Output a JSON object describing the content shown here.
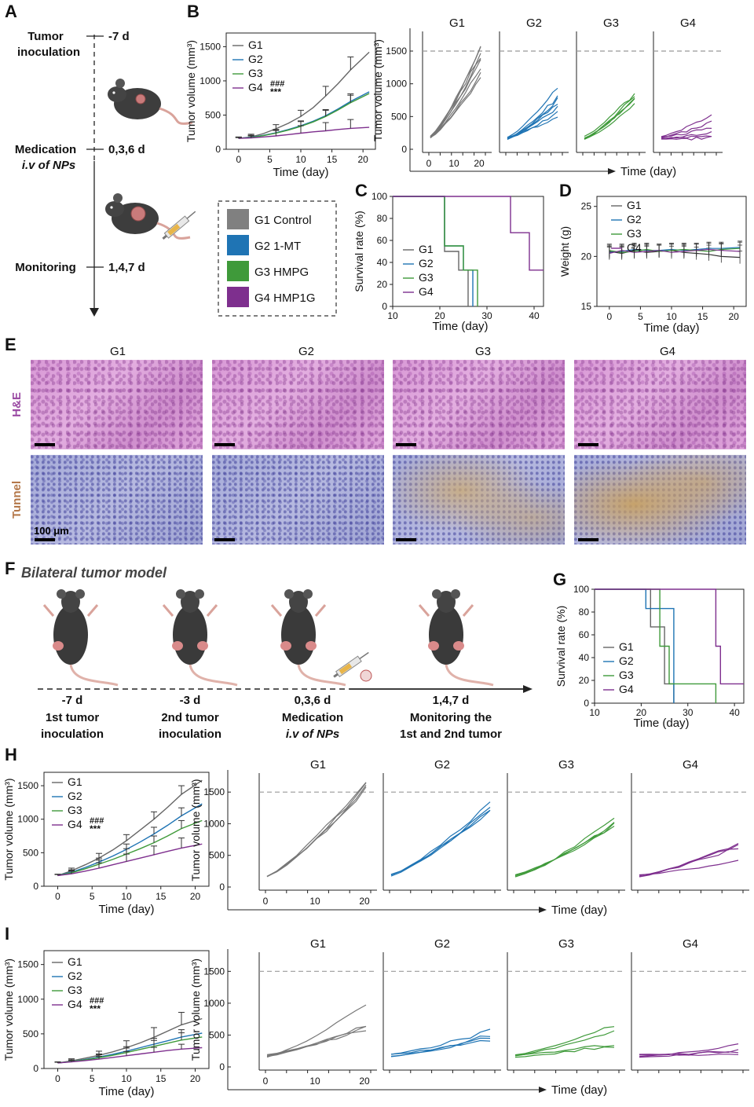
{
  "colors": {
    "G1": "#8c8c8c",
    "G2": "#1f74b4",
    "G3": "#3f9a3a",
    "G4": "#7e2f8e",
    "dash": "#999999"
  },
  "panelA": {
    "letter": "A",
    "steps": [
      {
        "label1": "Tumor",
        "label2": "inoculation",
        "day": "-7 d"
      },
      {
        "label1": "Medication",
        "label2": "i.v of NPs",
        "day": "0,3,6 d"
      },
      {
        "label1": "Monitoring",
        "label2": "",
        "day": "1,4,7 d"
      }
    ]
  },
  "legendBox": {
    "items": [
      {
        "label": "G1 Control",
        "color": "#808080"
      },
      {
        "label": "G2 1-MT",
        "color": "#1f74b4"
      },
      {
        "label": "G3 HMPG",
        "color": "#3f9a3a"
      },
      {
        "label": "G4 HMP1G",
        "color": "#7e2f8e"
      }
    ]
  },
  "panelE": {
    "letter": "E",
    "cols": [
      "G1",
      "G2",
      "G3",
      "G4"
    ],
    "rows": [
      "H&E",
      "Tunnel"
    ],
    "scale": "100 μm"
  },
  "panelF": {
    "letter": "F",
    "title": "Bilateral tumor model",
    "steps": [
      {
        "day": "-7 d",
        "l1": "1st tumor",
        "l2": "inoculation"
      },
      {
        "day": "-3 d",
        "l1": "2nd tumor",
        "l2": "inoculation"
      },
      {
        "day": "0,3,6 d",
        "l1": "Medication",
        "l2": "i.v of NPs"
      },
      {
        "day": "1,4,7 d",
        "l1": "Monitoring the",
        "l2": "1st and 2nd tumor"
      }
    ]
  },
  "chart_data": [
    {
      "id": "B-mean",
      "type": "line",
      "title": "",
      "xlabel": "Time (day)",
      "ylabel": "Tumor volume (mm³)",
      "xlim": [
        -2,
        22
      ],
      "ylim": [
        0,
        1700
      ],
      "xticks": [
        0,
        5,
        10,
        15,
        20
      ],
      "yticks": [
        0,
        500,
        1000,
        1500
      ],
      "legend": [
        "G1",
        "G2",
        "G3",
        "G4"
      ],
      "annotation": "### ***",
      "x": [
        0,
        2,
        4,
        6,
        8,
        10,
        12,
        14,
        16,
        18,
        21
      ],
      "series": [
        {
          "name": "G1",
          "values": [
            160,
            180,
            230,
            300,
            380,
            480,
            610,
            780,
            960,
            1160,
            1420
          ],
          "err": [
            20,
            40,
            50,
            60,
            80,
            90,
            110,
            140,
            160,
            190,
            220
          ]
        },
        {
          "name": "G2",
          "values": [
            160,
            175,
            205,
            240,
            290,
            345,
            410,
            490,
            590,
            700,
            840
          ],
          "err": [
            15,
            30,
            40,
            50,
            60,
            70,
            80,
            90,
            100,
            110,
            120
          ]
        },
        {
          "name": "G3",
          "values": [
            160,
            170,
            200,
            235,
            280,
            335,
            400,
            480,
            575,
            680,
            815
          ],
          "err": [
            15,
            30,
            40,
            50,
            60,
            70,
            80,
            90,
            100,
            110,
            120
          ]
        },
        {
          "name": "G4",
          "values": [
            160,
            165,
            180,
            195,
            215,
            235,
            255,
            270,
            290,
            305,
            320
          ],
          "err": [
            10,
            30,
            50,
            80,
            100,
            110,
            120,
            120,
            120,
            130,
            130
          ]
        }
      ]
    },
    {
      "id": "B-ind",
      "type": "line",
      "xlabel": "Time (day)",
      "ylabel": "Tumor volume (mm³)",
      "ylim": [
        0,
        1800
      ],
      "yticks": [
        0,
        500,
        1000,
        1500
      ],
      "xticks": [
        0,
        10,
        20
      ],
      "threshold": 1500,
      "facets": [
        "G1",
        "G2",
        "G3",
        "G4"
      ]
    },
    {
      "id": "C",
      "type": "line",
      "xlabel": "Time (day)",
      "ylabel": "Survival rate (%)",
      "xlim": [
        10,
        42
      ],
      "ylim": [
        0,
        100
      ],
      "xticks": [
        10,
        20,
        30,
        40
      ],
      "yticks": [
        0,
        20,
        40,
        60,
        80,
        100
      ],
      "legend": [
        "G1",
        "G2",
        "G3",
        "G4"
      ],
      "series": [
        {
          "name": "G1",
          "steps": [
            [
              10,
              100
            ],
            [
              21,
              100
            ],
            [
              21,
              50
            ],
            [
              24,
              50
            ],
            [
              24,
              33
            ],
            [
              26,
              33
            ],
            [
              26,
              0
            ]
          ]
        },
        {
          "name": "G2",
          "steps": [
            [
              10,
              100
            ],
            [
              21,
              100
            ],
            [
              21,
              55
            ],
            [
              25,
              55
            ],
            [
              25,
              33
            ],
            [
              27,
              33
            ],
            [
              27,
              0
            ]
          ]
        },
        {
          "name": "G3",
          "steps": [
            [
              10,
              100
            ],
            [
              21,
              100
            ],
            [
              21,
              55
            ],
            [
              25,
              55
            ],
            [
              25,
              33
            ],
            [
              28,
              33
            ],
            [
              28,
              0
            ]
          ]
        },
        {
          "name": "G4",
          "steps": [
            [
              10,
              100
            ],
            [
              35,
              100
            ],
            [
              35,
              67
            ],
            [
              39,
              67
            ],
            [
              39,
              33
            ],
            [
              42,
              33
            ]
          ]
        }
      ]
    },
    {
      "id": "D",
      "type": "line",
      "xlabel": "Time (day)",
      "ylabel": "Weight (g)",
      "xlim": [
        -2,
        22
      ],
      "ylim": [
        15,
        26
      ],
      "xticks": [
        0,
        5,
        10,
        15,
        20
      ],
      "yticks": [
        15,
        20,
        25
      ],
      "legend": [
        "G1",
        "G2",
        "G3",
        "G4"
      ],
      "x": [
        0,
        2,
        4,
        6,
        8,
        10,
        12,
        14,
        16,
        18,
        21
      ],
      "series": [
        {
          "name": "G1",
          "values": [
            20.5,
            20.3,
            20.6,
            20.4,
            20.5,
            20.6,
            20.4,
            20.3,
            20.2,
            20.0,
            19.9
          ]
        },
        {
          "name": "G2",
          "values": [
            20.4,
            20.5,
            20.7,
            20.6,
            20.6,
            20.7,
            20.6,
            20.7,
            20.8,
            20.8,
            20.9
          ]
        },
        {
          "name": "G3",
          "values": [
            20.6,
            20.4,
            20.5,
            20.7,
            20.5,
            20.6,
            20.7,
            20.6,
            20.5,
            20.7,
            20.8
          ]
        },
        {
          "name": "G4",
          "values": [
            20.3,
            20.6,
            20.4,
            20.5,
            20.6,
            20.4,
            20.5,
            20.6,
            20.7,
            20.6,
            20.5
          ]
        }
      ]
    },
    {
      "id": "G",
      "type": "line",
      "xlabel": "Time (day)",
      "ylabel": "Survival rate (%)",
      "xlim": [
        10,
        42
      ],
      "ylim": [
        0,
        100
      ],
      "xticks": [
        10,
        20,
        30,
        40
      ],
      "yticks": [
        0,
        20,
        40,
        60,
        80,
        100
      ],
      "legend": [
        "G1",
        "G2",
        "G3",
        "G4"
      ],
      "series": [
        {
          "name": "G1",
          "steps": [
            [
              10,
              100
            ],
            [
              22,
              100
            ],
            [
              22,
              67
            ],
            [
              25,
              67
            ],
            [
              25,
              17
            ],
            [
              27,
              17
            ],
            [
              27,
              0
            ]
          ]
        },
        {
          "name": "G2",
          "steps": [
            [
              10,
              100
            ],
            [
              21,
              100
            ],
            [
              21,
              83
            ],
            [
              27,
              83
            ],
            [
              27,
              17
            ],
            [
              27,
              0
            ]
          ]
        },
        {
          "name": "G3",
          "steps": [
            [
              10,
              100
            ],
            [
              24,
              100
            ],
            [
              24,
              50
            ],
            [
              26,
              50
            ],
            [
              26,
              17
            ],
            [
              36,
              17
            ],
            [
              36,
              0
            ]
          ]
        },
        {
          "name": "G4",
          "steps": [
            [
              10,
              100
            ],
            [
              36,
              100
            ],
            [
              36,
              50
            ],
            [
              37,
              50
            ],
            [
              37,
              17
            ],
            [
              42,
              17
            ]
          ]
        }
      ]
    },
    {
      "id": "H-mean",
      "type": "line",
      "xlabel": "Time (day)",
      "ylabel": "Tumor volume (mm³)",
      "xlim": [
        -2,
        22
      ],
      "ylim": [
        0,
        1700
      ],
      "xticks": [
        0,
        5,
        10,
        15,
        20
      ],
      "yticks": [
        0,
        500,
        1000,
        1500
      ],
      "legend": [
        "G1",
        "G2",
        "G3",
        "G4"
      ],
      "annotation": "### ***",
      "x": [
        0,
        2,
        4,
        6,
        8,
        10,
        12,
        14,
        16,
        18,
        21
      ],
      "series": [
        {
          "name": "G1",
          "values": [
            160,
            230,
            320,
            420,
            540,
            680,
            840,
            1000,
            1180,
            1370,
            1580
          ],
          "err": [
            20,
            40,
            60,
            70,
            80,
            90,
            100,
            110,
            120,
            130,
            140
          ]
        },
        {
          "name": "G2",
          "values": [
            160,
            210,
            280,
            360,
            450,
            550,
            660,
            780,
            910,
            1050,
            1230
          ],
          "err": [
            15,
            35,
            50,
            60,
            70,
            80,
            90,
            100,
            110,
            120,
            130
          ]
        },
        {
          "name": "G3",
          "values": [
            160,
            200,
            260,
            330,
            400,
            480,
            560,
            650,
            750,
            860,
            980
          ],
          "err": [
            15,
            35,
            50,
            60,
            70,
            80,
            90,
            100,
            110,
            120,
            130
          ]
        },
        {
          "name": "G4",
          "values": [
            160,
            185,
            225,
            270,
            320,
            370,
            420,
            470,
            520,
            570,
            630
          ],
          "err": [
            15,
            40,
            60,
            80,
            100,
            110,
            120,
            130,
            140,
            150,
            160
          ]
        }
      ]
    },
    {
      "id": "H-ind",
      "type": "line",
      "xlabel": "Time (day)",
      "ylabel": "Tumor volume (mm³)",
      "ylim": [
        0,
        1800
      ],
      "yticks": [
        0,
        500,
        1000,
        1500
      ],
      "xticks": [
        0,
        10,
        20
      ],
      "threshold": 1500,
      "facets": [
        "G1",
        "G2",
        "G3",
        "G4"
      ]
    },
    {
      "id": "I-mean",
      "type": "line",
      "xlabel": "Time (day)",
      "ylabel": "Tumor volume (mm³)",
      "xlim": [
        -2,
        22
      ],
      "ylim": [
        0,
        1700
      ],
      "xticks": [
        0,
        5,
        10,
        15,
        20
      ],
      "yticks": [
        0,
        500,
        1000,
        1500
      ],
      "legend": [
        "G1",
        "G2",
        "G3",
        "G4"
      ],
      "annotation": "### ***",
      "x": [
        0,
        2,
        4,
        6,
        8,
        10,
        12,
        14,
        16,
        18,
        21
      ],
      "series": [
        {
          "name": "G1",
          "values": [
            80,
            110,
            150,
            190,
            240,
            300,
            370,
            450,
            540,
            630,
            720
          ],
          "err": [
            15,
            30,
            40,
            60,
            80,
            100,
            120,
            140,
            160,
            180,
            200
          ]
        },
        {
          "name": "G2",
          "values": [
            80,
            100,
            130,
            165,
            205,
            250,
            300,
            350,
            400,
            455,
            510
          ],
          "err": [
            15,
            25,
            35,
            45,
            55,
            65,
            75,
            85,
            95,
            105,
            115
          ]
        },
        {
          "name": "G3",
          "values": [
            80,
            100,
            125,
            155,
            190,
            230,
            275,
            320,
            365,
            410,
            455
          ],
          "err": [
            15,
            25,
            35,
            45,
            55,
            65,
            75,
            85,
            95,
            105,
            115
          ]
        },
        {
          "name": "G4",
          "values": [
            80,
            95,
            115,
            135,
            160,
            185,
            210,
            235,
            260,
            280,
            300
          ],
          "err": [
            10,
            20,
            30,
            40,
            50,
            60,
            70,
            70,
            70,
            70,
            70
          ]
        }
      ]
    },
    {
      "id": "I-ind",
      "type": "line",
      "xlabel": "Time (day)",
      "ylabel": "Tumor volume (mm³)",
      "ylim": [
        0,
        1800
      ],
      "yticks": [
        0,
        500,
        1000,
        1500
      ],
      "xticks": [
        0,
        10,
        20
      ],
      "threshold": 1500,
      "facets": [
        "G1",
        "G2",
        "G3",
        "G4"
      ]
    }
  ]
}
